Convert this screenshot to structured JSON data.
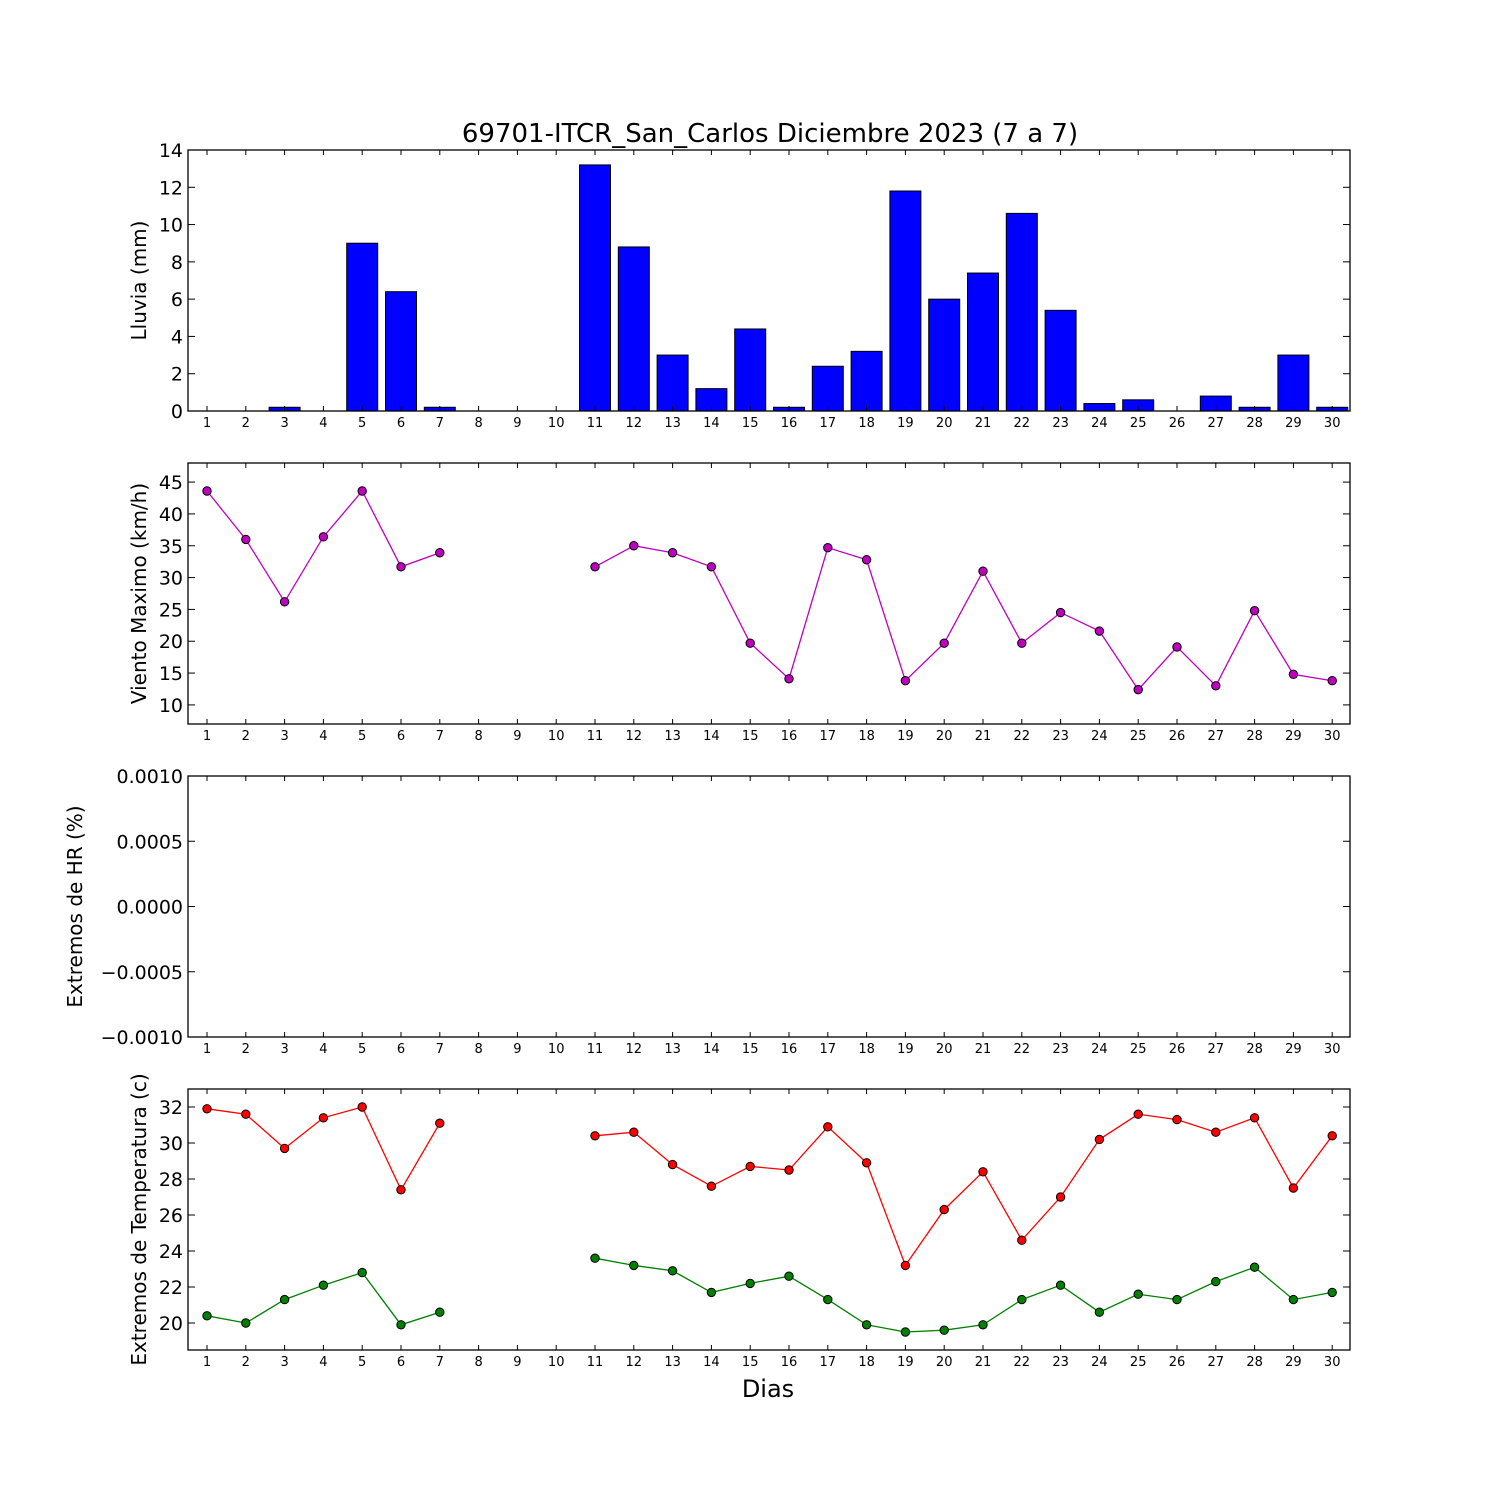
{
  "title": "69701-ITCR_San_Carlos Diciembre 2023  (7 a 7)",
  "xlabel": "Dias",
  "colors": {
    "rain": "#0000ff",
    "wind": "#bf00bf",
    "tmax": "#ff0000",
    "tmin": "#008000",
    "frame": "#000000"
  },
  "chart_data": [
    {
      "type": "bar",
      "ylabel": "Lluvia (mm)",
      "ylim": [
        0,
        14
      ],
      "yticks": [
        "0",
        "2",
        "4",
        "6",
        "8",
        "10",
        "12",
        "14"
      ],
      "categories": [
        "1",
        "2",
        "3",
        "4",
        "5",
        "6",
        "7",
        "8",
        "9",
        "10",
        "11",
        "12",
        "13",
        "14",
        "15",
        "16",
        "17",
        "18",
        "19",
        "20",
        "21",
        "22",
        "23",
        "24",
        "25",
        "26",
        "27",
        "28",
        "29",
        "30"
      ],
      "values": [
        0,
        0,
        0.2,
        0,
        9.0,
        6.4,
        0.2,
        0,
        0,
        0,
        13.2,
        8.8,
        3.0,
        1.2,
        4.4,
        0.2,
        2.4,
        3.2,
        11.8,
        6.0,
        7.4,
        10.6,
        5.4,
        0.4,
        0.6,
        0,
        0.8,
        0.2,
        3.0,
        0.2
      ]
    },
    {
      "type": "line",
      "ylabel": "Viento Maximo (km/h)",
      "ylim": [
        7,
        48
      ],
      "yticks": [
        "10",
        "15",
        "20",
        "25",
        "30",
        "35",
        "40",
        "45"
      ],
      "categories": [
        "1",
        "2",
        "3",
        "4",
        "5",
        "6",
        "7",
        "8",
        "9",
        "10",
        "11",
        "12",
        "13",
        "14",
        "15",
        "16",
        "17",
        "18",
        "19",
        "20",
        "21",
        "22",
        "23",
        "24",
        "25",
        "26",
        "27",
        "28",
        "29",
        "30"
      ],
      "series": [
        {
          "values": [
            43.6,
            36.0,
            26.2,
            36.4,
            43.6,
            31.7,
            33.9,
            null,
            null,
            null,
            31.7,
            35.0,
            33.9,
            31.7,
            19.7,
            14.1,
            34.7,
            32.8,
            13.8,
            19.7,
            31.0,
            19.7,
            24.5,
            21.6,
            12.4,
            19.1,
            13.0,
            24.8,
            14.8,
            13.8
          ]
        }
      ]
    },
    {
      "type": "line",
      "ylabel": "Extremos de HR (%)",
      "ylim": [
        -0.001,
        0.001
      ],
      "yticks": [
        "−0.0010",
        "−0.0005",
        "0.0000",
        "0.0005",
        "0.0010"
      ],
      "categories": [
        "1",
        "2",
        "3",
        "4",
        "5",
        "6",
        "7",
        "8",
        "9",
        "10",
        "11",
        "12",
        "13",
        "14",
        "15",
        "16",
        "17",
        "18",
        "19",
        "20",
        "21",
        "22",
        "23",
        "24",
        "25",
        "26",
        "27",
        "28",
        "29",
        "30"
      ],
      "series": []
    },
    {
      "type": "line",
      "ylabel": "Extremos de Temperatura (c)",
      "ylim": [
        18.5,
        33
      ],
      "yticks": [
        "20",
        "22",
        "24",
        "26",
        "28",
        "30",
        "32"
      ],
      "categories": [
        "1",
        "2",
        "3",
        "4",
        "5",
        "6",
        "7",
        "8",
        "9",
        "10",
        "11",
        "12",
        "13",
        "14",
        "15",
        "16",
        "17",
        "18",
        "19",
        "20",
        "21",
        "22",
        "23",
        "24",
        "25",
        "26",
        "27",
        "28",
        "29",
        "30"
      ],
      "series": [
        {
          "values": [
            31.9,
            31.6,
            29.7,
            31.4,
            32.0,
            27.4,
            31.1,
            null,
            null,
            null,
            30.4,
            30.6,
            28.8,
            27.6,
            28.7,
            28.5,
            30.9,
            28.9,
            23.2,
            26.3,
            28.4,
            24.6,
            27.0,
            30.2,
            31.6,
            31.3,
            30.6,
            31.4,
            27.5,
            30.4
          ]
        },
        {
          "values": [
            20.4,
            20.0,
            21.3,
            22.1,
            22.8,
            19.9,
            20.6,
            null,
            null,
            null,
            23.6,
            23.2,
            22.9,
            21.7,
            22.2,
            22.6,
            21.3,
            19.9,
            19.5,
            19.6,
            19.9,
            21.3,
            22.1,
            20.6,
            21.6,
            21.3,
            22.3,
            23.1,
            21.3,
            21.7
          ]
        }
      ]
    }
  ]
}
